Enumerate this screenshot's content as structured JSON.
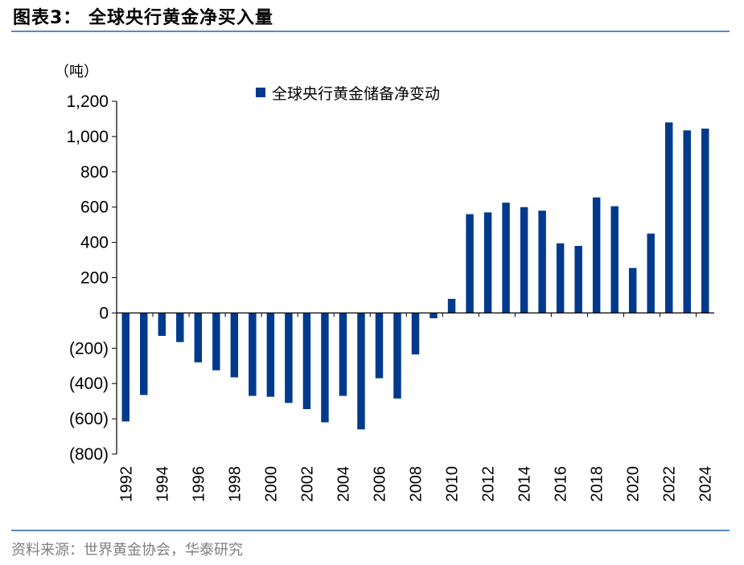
{
  "figure_title": "图表3：  全球央行黄金净买入量",
  "source": "资料来源：世界黄金协会，华泰研究",
  "colors": {
    "bar": "#003a8c",
    "rule": "#5b87c0",
    "axis": "#000000"
  },
  "chart_data": {
    "type": "bar",
    "unit_label": "（吨）",
    "y_ticks": [
      "1,200",
      "1,000",
      "800",
      "600",
      "400",
      "200",
      "0",
      "(200)",
      "(400)",
      "(600)",
      "(800)"
    ],
    "ylim": [
      -800,
      1200
    ],
    "grid": false,
    "legend_position": "top-center",
    "categories": [
      "1992",
      "1993",
      "1994",
      "1995",
      "1996",
      "1997",
      "1998",
      "1999",
      "2000",
      "2001",
      "2002",
      "2003",
      "2004",
      "2005",
      "2006",
      "2007",
      "2008",
      "2009",
      "2010",
      "2011",
      "2012",
      "2013",
      "2014",
      "2015",
      "2016",
      "2017",
      "2018",
      "2019",
      "2020",
      "2021",
      "2022",
      "2023",
      "2024"
    ],
    "x_tick_labels": [
      "1992",
      "1994",
      "1996",
      "1998",
      "2000",
      "2002",
      "2004",
      "2006",
      "2008",
      "2010",
      "2012",
      "2014",
      "2016",
      "2018",
      "2020",
      "2022",
      "2024"
    ],
    "series": [
      {
        "name": "全球央行黄金储备净变动",
        "values": [
          -615,
          -465,
          -130,
          -165,
          -280,
          -325,
          -365,
          -470,
          -475,
          -510,
          -545,
          -620,
          -470,
          -660,
          -370,
          -485,
          -235,
          -30,
          80,
          560,
          570,
          625,
          600,
          580,
          395,
          380,
          655,
          605,
          255,
          450,
          1080,
          1035,
          1045
        ]
      }
    ]
  }
}
